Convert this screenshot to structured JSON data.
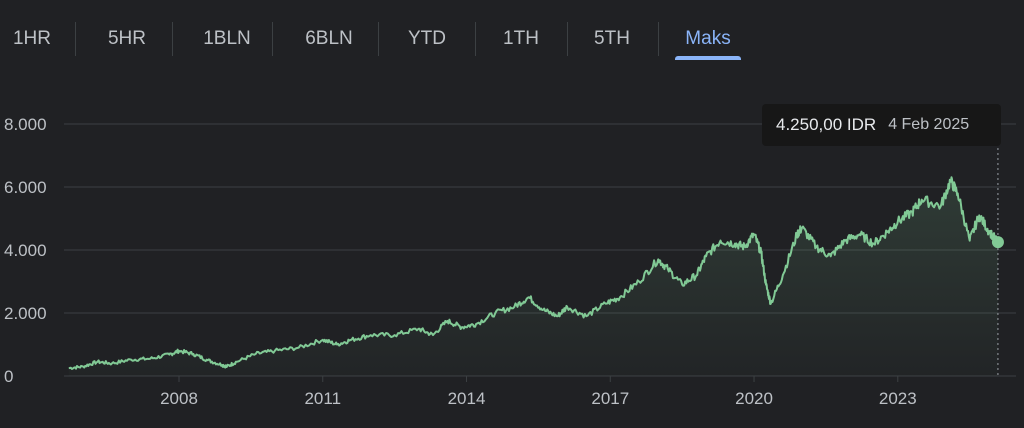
{
  "tabs": [
    {
      "label": "1HR",
      "active": false
    },
    {
      "label": "5HR",
      "active": false
    },
    {
      "label": "1BLN",
      "active": false
    },
    {
      "label": "6BLN",
      "active": false
    },
    {
      "label": "YTD",
      "active": false
    },
    {
      "label": "1TH",
      "active": false
    },
    {
      "label": "5TH",
      "active": false
    },
    {
      "label": "Maks",
      "active": true
    }
  ],
  "tooltip": {
    "price": "4.250,00 IDR",
    "date": "4 Feb 2025"
  },
  "colors": {
    "background": "#202124",
    "line": "#81c995",
    "accent": "#8ab4f8",
    "grid": "#3c4043",
    "text": "#bdc1c6"
  },
  "chart_data": {
    "type": "area",
    "y_ticks": [
      "0",
      "2.000",
      "4.000",
      "6.000",
      "8.000"
    ],
    "x_ticks": [
      "2008",
      "2011",
      "2014",
      "2017",
      "2020",
      "2023"
    ],
    "ylim": [
      0,
      8000
    ],
    "xlim": [
      2005.6,
      2025.3
    ],
    "grid": true,
    "series": [
      {
        "x": [
          2005.7,
          2006.0,
          2006.3,
          2006.6,
          2007.0,
          2007.4,
          2007.8,
          2008.0,
          2008.3,
          2008.6,
          2008.9,
          2009.0,
          2009.2,
          2009.6,
          2010.0,
          2010.5,
          2011.0,
          2011.3,
          2011.6,
          2012.0,
          2012.5,
          2013.0,
          2013.3,
          2013.6,
          2013.9,
          2014.2,
          2014.6,
          2015.0,
          2015.3,
          2015.6,
          2015.9,
          2016.1,
          2016.5,
          2016.9,
          2017.2,
          2017.6,
          2018.0,
          2018.2,
          2018.5,
          2018.8,
          2019.0,
          2019.3,
          2019.6,
          2019.8,
          2020.0,
          2020.15,
          2020.25,
          2020.35,
          2020.6,
          2020.9,
          2021.0,
          2021.3,
          2021.6,
          2021.9,
          2022.2,
          2022.5,
          2022.8,
          2023.0,
          2023.3,
          2023.5,
          2023.9,
          2024.1,
          2024.25,
          2024.5,
          2024.7,
          2024.9,
          2025.09
        ],
        "values": [
          250,
          300,
          450,
          400,
          520,
          550,
          680,
          800,
          700,
          500,
          350,
          300,
          450,
          700,
          800,
          900,
          1150,
          1000,
          1150,
          1300,
          1300,
          1500,
          1300,
          1750,
          1550,
          1650,
          2000,
          2200,
          2500,
          2100,
          1900,
          2200,
          1900,
          2300,
          2500,
          3000,
          3700,
          3400,
          2900,
          3200,
          3800,
          4300,
          4200,
          4100,
          4500,
          3900,
          2900,
          2300,
          3200,
          4500,
          4700,
          4100,
          3800,
          4300,
          4500,
          4200,
          4600,
          4900,
          5200,
          5600,
          5400,
          6200,
          5800,
          4300,
          5100,
          4600,
          4250
        ]
      }
    ]
  }
}
